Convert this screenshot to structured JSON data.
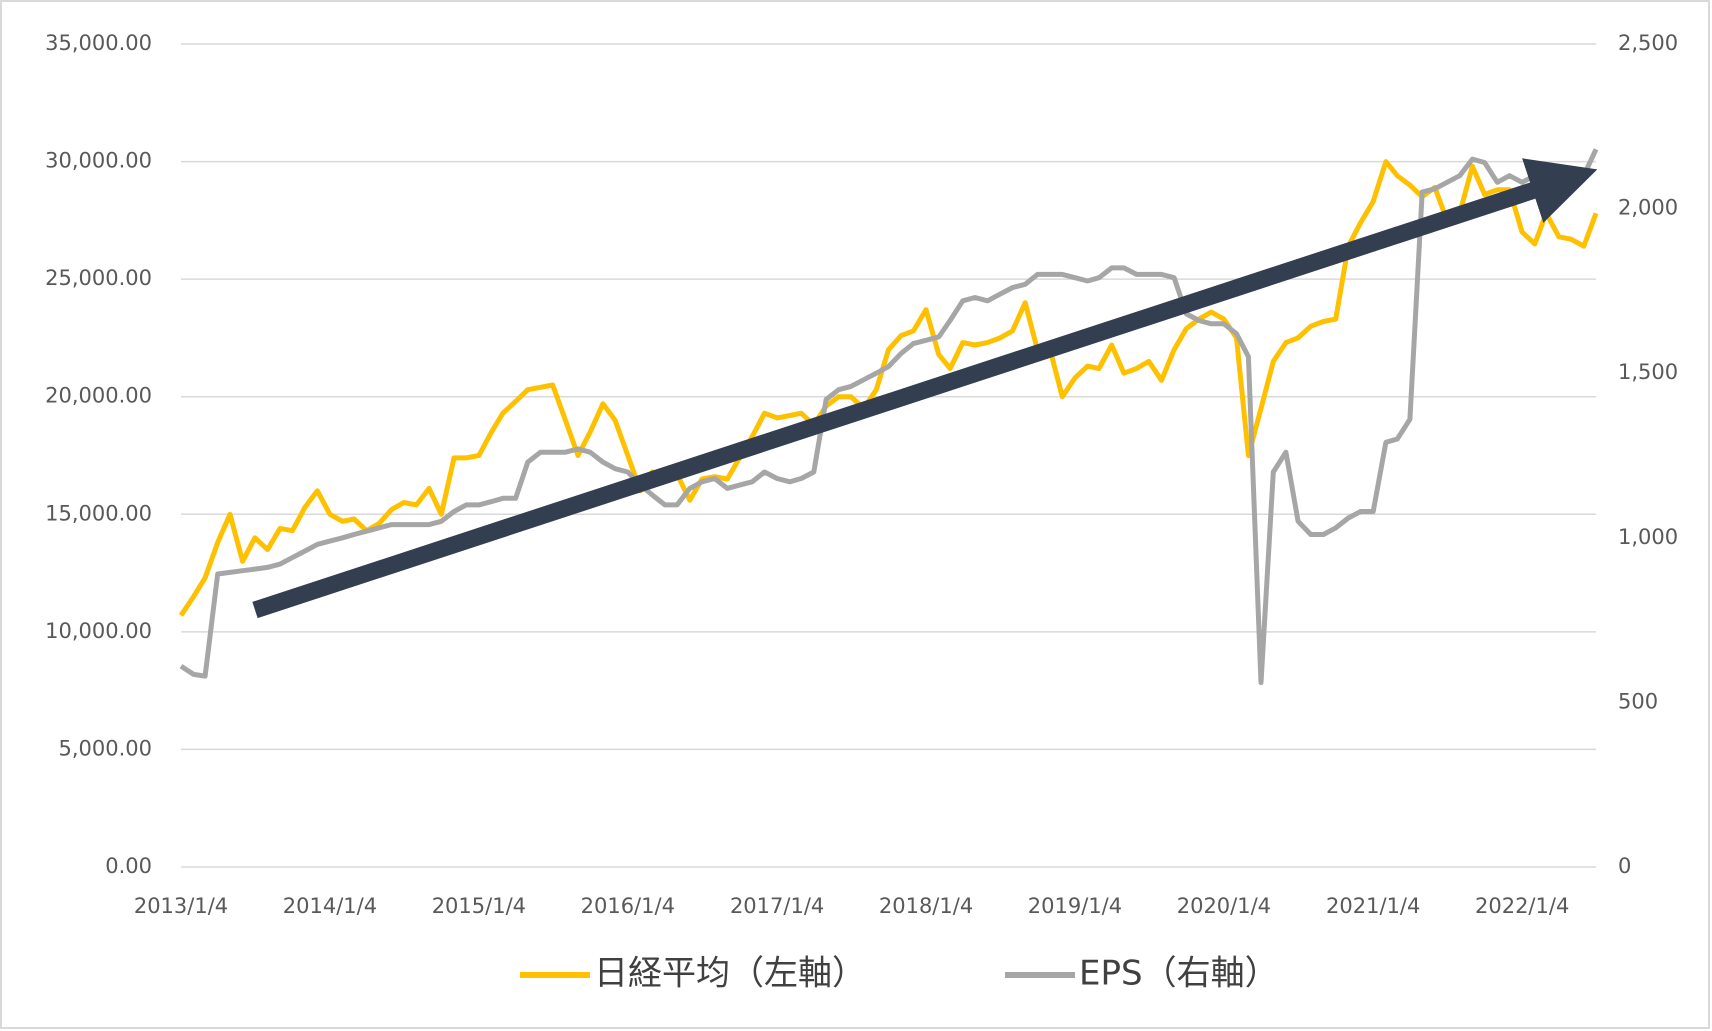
{
  "chart_data": {
    "type": "line",
    "x": [
      "2013/1/4",
      "2013/2/4",
      "2013/3/4",
      "2013/4/4",
      "2013/5/4",
      "2013/6/4",
      "2013/7/4",
      "2013/8/4",
      "2013/9/4",
      "2013/10/4",
      "2013/11/4",
      "2013/12/4",
      "2014/1/4",
      "2014/2/4",
      "2014/3/4",
      "2014/4/4",
      "2014/5/4",
      "2014/6/4",
      "2014/7/4",
      "2014/8/4",
      "2014/9/4",
      "2014/10/4",
      "2014/11/4",
      "2014/12/4",
      "2015/1/4",
      "2015/2/4",
      "2015/3/4",
      "2015/4/4",
      "2015/5/4",
      "2015/6/4",
      "2015/7/4",
      "2015/8/4",
      "2015/9/4",
      "2015/10/4",
      "2015/11/4",
      "2015/12/4",
      "2016/1/4",
      "2016/2/4",
      "2016/3/4",
      "2016/4/4",
      "2016/5/4",
      "2016/6/4",
      "2016/7/4",
      "2016/8/4",
      "2016/9/4",
      "2016/10/4",
      "2016/11/4",
      "2016/12/4",
      "2017/1/4",
      "2017/2/4",
      "2017/3/4",
      "2017/4/4",
      "2017/5/4",
      "2017/6/4",
      "2017/7/4",
      "2017/8/4",
      "2017/9/4",
      "2017/10/4",
      "2017/11/4",
      "2017/12/4",
      "2018/1/4",
      "2018/2/4",
      "2018/3/4",
      "2018/4/4",
      "2018/5/4",
      "2018/6/4",
      "2018/7/4",
      "2018/8/4",
      "2018/9/4",
      "2018/10/4",
      "2018/11/4",
      "2018/12/4",
      "2019/1/4",
      "2019/2/4",
      "2019/3/4",
      "2019/4/4",
      "2019/5/4",
      "2019/6/4",
      "2019/7/4",
      "2019/8/4",
      "2019/9/4",
      "2019/10/4",
      "2019/11/4",
      "2019/12/4",
      "2020/1/4",
      "2020/2/4",
      "2020/3/4",
      "2020/4/4",
      "2020/5/4",
      "2020/6/4",
      "2020/7/4",
      "2020/8/4",
      "2020/9/4",
      "2020/10/4",
      "2020/11/4",
      "2020/12/4",
      "2021/1/4",
      "2021/2/4",
      "2021/3/4",
      "2021/4/4",
      "2021/5/4",
      "2021/6/4",
      "2021/7/4",
      "2021/8/4",
      "2021/9/4",
      "2021/10/4",
      "2021/11/4",
      "2021/12/4",
      "2022/1/4",
      "2022/2/4",
      "2022/3/4",
      "2022/4/4",
      "2022/5/4",
      "2022/6/4",
      "2022/7/4"
    ],
    "series": [
      {
        "name": "日経平均（左軸）",
        "color": "#ffc000",
        "values": [
          10700,
          11500,
          12300,
          13800,
          15000,
          13000,
          14000,
          13500,
          14400,
          14300,
          15300,
          16000,
          15000,
          14700,
          14800,
          14300,
          14600,
          15200,
          15500,
          15400,
          16100,
          15000,
          17400,
          17400,
          17500,
          18500,
          19300,
          19800,
          20300,
          20400,
          20500,
          19000,
          17500,
          18500,
          19700,
          19000,
          17500,
          16000,
          16800,
          16600,
          16700,
          15600,
          16500,
          16600,
          16500,
          17400,
          18300,
          19300,
          19100,
          19200,
          19300,
          18800,
          19600,
          20000,
          20000,
          19500,
          20300,
          22000,
          22600,
          22800,
          23700,
          21800,
          21200,
          22300,
          22200,
          22300,
          22500,
          22800,
          24000,
          22000,
          22000,
          20000,
          20800,
          21300,
          21200,
          22200,
          21000,
          21200,
          21500,
          20700,
          22000,
          22900,
          23300,
          23600,
          23300,
          22500,
          17500,
          19500,
          21500,
          22300,
          22500,
          23000,
          23200,
          23300,
          26400,
          27400,
          28300,
          30000,
          29400,
          29000,
          28500,
          28900,
          27500,
          27800,
          29800,
          28600,
          28800,
          28800,
          27000,
          26500,
          27800,
          26800,
          26700,
          26400,
          27800
        ]
      },
      {
        "name": "EPS（右軸）",
        "color": "#a6a6a6",
        "axis": "y2",
        "values": [
          610,
          585,
          580,
          890,
          895,
          900,
          905,
          910,
          920,
          940,
          960,
          980,
          990,
          1000,
          1010,
          1020,
          1030,
          1040,
          1040,
          1040,
          1040,
          1050,
          1080,
          1100,
          1100,
          1110,
          1120,
          1120,
          1230,
          1260,
          1260,
          1260,
          1270,
          1260,
          1230,
          1210,
          1200,
          1160,
          1130,
          1100,
          1100,
          1150,
          1170,
          1180,
          1150,
          1160,
          1170,
          1200,
          1180,
          1170,
          1180,
          1200,
          1420,
          1450,
          1460,
          1480,
          1500,
          1520,
          1560,
          1590,
          1600,
          1610,
          1660,
          1720,
          1730,
          1720,
          1740,
          1760,
          1770,
          1800,
          1800,
          1800,
          1790,
          1780,
          1790,
          1820,
          1820,
          1800,
          1800,
          1800,
          1790,
          1680,
          1660,
          1650,
          1650,
          1620,
          1550,
          560,
          1200,
          1260,
          1050,
          1010,
          1010,
          1030,
          1060,
          1080,
          1080,
          1290,
          1300,
          1360,
          2050,
          2060,
          2080,
          2100,
          2150,
          2140,
          2080,
          2100,
          2080,
          2100,
          2090,
          2080,
          2060,
          2100,
          2180
        ]
      }
    ],
    "xlim": [
      "2013/1/4",
      "2022/7/4"
    ],
    "xticks": [
      "2013/1/4",
      "2014/1/4",
      "2015/1/4",
      "2016/1/4",
      "2017/1/4",
      "2018/1/4",
      "2019/1/4",
      "2020/1/4",
      "2021/1/4",
      "2022/1/4"
    ],
    "ylim": [
      0,
      35000
    ],
    "yticks": [
      {
        "value": 0,
        "label": "0.00"
      },
      {
        "value": 5000,
        "label": "5,000.00"
      },
      {
        "value": 10000,
        "label": "10,000.00"
      },
      {
        "value": 15000,
        "label": "15,000.00"
      },
      {
        "value": 20000,
        "label": "20,000.00"
      },
      {
        "value": 25000,
        "label": "25,000.00"
      },
      {
        "value": 30000,
        "label": "30,000.00"
      },
      {
        "value": 35000,
        "label": "35,000.00"
      }
    ],
    "y2lim": [
      0,
      2500
    ],
    "y2ticks": [
      0,
      500,
      {
        "value": 1000,
        "label": "1,000"
      },
      {
        "value": 1500,
        "label": "1,500"
      },
      {
        "value": 2000,
        "label": "2,000"
      },
      {
        "value": 2500,
        "label": "2,500"
      }
    ],
    "grid": true
  }
}
